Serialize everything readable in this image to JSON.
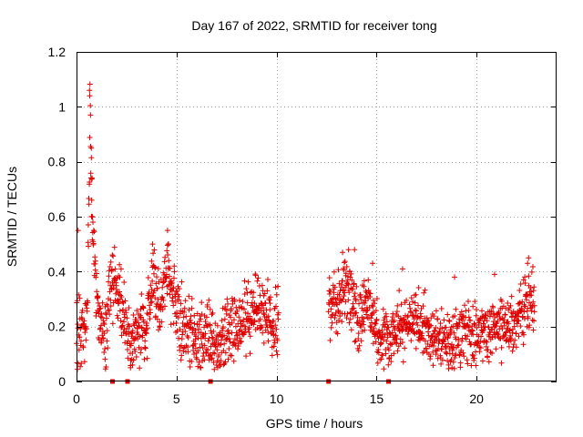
{
  "chart_data": {
    "type": "scatter",
    "title": "Day 167 of 2022, SRMTID for receiver tong",
    "xlabel": "GPS time / hours",
    "ylabel": "SRMTID / TECUs",
    "xlim": [
      0,
      24
    ],
    "ylim": [
      0,
      1.2
    ],
    "xticks": [
      0,
      5,
      10,
      15,
      20
    ],
    "yticks": [
      0,
      0.2,
      0.4,
      0.6,
      0.8,
      1,
      1.2
    ],
    "ytick_labels": [
      "0",
      "0.2",
      "0.4",
      "0.6",
      "0.8",
      "1",
      "1.2"
    ],
    "grid": true,
    "marker": "+",
    "colors": {
      "series": "#e00000",
      "axis": "#000000",
      "grid": "#a0a0a0"
    },
    "series": [
      {
        "name": "SRMTID",
        "segments": [
          {
            "start": 0.0,
            "end": 10.1,
            "anchors": [
              [
                0.0,
                0.18
              ],
              [
                0.3,
                0.16
              ],
              [
                0.55,
                0.28
              ],
              [
                0.68,
                0.98
              ],
              [
                0.72,
                0.78
              ],
              [
                0.8,
                0.55
              ],
              [
                0.95,
                0.35
              ],
              [
                1.1,
                0.22
              ],
              [
                1.45,
                0.14
              ],
              [
                1.75,
                0.38
              ],
              [
                2.1,
                0.3
              ],
              [
                2.4,
                0.22
              ],
              [
                2.7,
                0.12
              ],
              [
                3.0,
                0.18
              ],
              [
                3.5,
                0.22
              ],
              [
                3.85,
                0.38
              ],
              [
                4.2,
                0.25
              ],
              [
                4.5,
                0.42
              ],
              [
                4.9,
                0.3
              ],
              [
                5.3,
                0.18
              ],
              [
                6.0,
                0.16
              ],
              [
                6.6,
                0.16
              ],
              [
                7.0,
                0.12
              ],
              [
                7.6,
                0.2
              ],
              [
                8.3,
                0.22
              ],
              [
                9.0,
                0.26
              ],
              [
                9.5,
                0.24
              ],
              [
                10.1,
                0.2
              ]
            ],
            "spread": 0.06
          },
          {
            "start": 12.6,
            "end": 22.9,
            "anchors": [
              [
                12.6,
                0.3
              ],
              [
                13.0,
                0.28
              ],
              [
                13.4,
                0.35
              ],
              [
                13.8,
                0.3
              ],
              [
                14.1,
                0.18
              ],
              [
                14.5,
                0.28
              ],
              [
                14.8,
                0.22
              ],
              [
                15.2,
                0.15
              ],
              [
                15.8,
                0.18
              ],
              [
                16.4,
                0.2
              ],
              [
                17.0,
                0.22
              ],
              [
                17.6,
                0.18
              ],
              [
                18.3,
                0.16
              ],
              [
                18.8,
                0.14
              ],
              [
                19.4,
                0.18
              ],
              [
                20.0,
                0.17
              ],
              [
                20.6,
                0.2
              ],
              [
                21.2,
                0.18
              ],
              [
                21.8,
                0.2
              ],
              [
                22.3,
                0.25
              ],
              [
                22.6,
                0.32
              ],
              [
                22.9,
                0.26
              ]
            ],
            "spread": 0.055
          }
        ],
        "outliers": [
          [
            0.08,
            0.55
          ],
          [
            0.65,
            1.06
          ],
          [
            0.66,
            1.04
          ],
          [
            0.7,
            0.97
          ],
          [
            0.74,
            0.85
          ],
          [
            0.78,
            0.74
          ],
          [
            0.76,
            0.66
          ],
          [
            0.82,
            0.58
          ],
          [
            3.8,
            0.5
          ],
          [
            4.55,
            0.55
          ],
          [
            4.6,
            0.5
          ],
          [
            13.6,
            0.48
          ],
          [
            13.3,
            0.47
          ],
          [
            13.9,
            0.48
          ],
          [
            14.8,
            0.43
          ],
          [
            16.3,
            0.41
          ],
          [
            18.9,
            0.38
          ],
          [
            20.9,
            0.39
          ],
          [
            22.6,
            0.45
          ],
          [
            22.55,
            0.43
          ],
          [
            2.7,
            0.05
          ],
          [
            2.8,
            0.06
          ],
          [
            18.6,
            0.06
          ]
        ],
        "zero_points": [
          1.8,
          2.55,
          6.7,
          12.6,
          15.6
        ]
      }
    ]
  }
}
